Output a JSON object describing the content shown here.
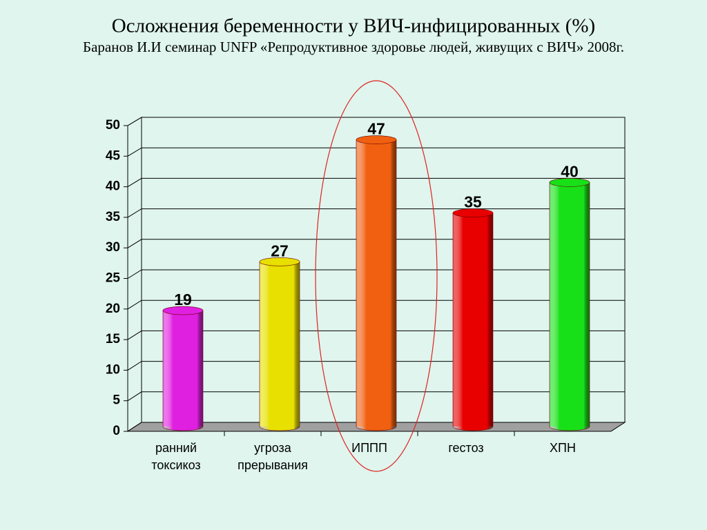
{
  "chart_data": {
    "type": "bar",
    "title": "Осложнения беременности у ВИЧ-инфицированных (%)",
    "subtitle": "Баранов И.И семинар UNFP «Репродуктивное здоровье людей, живущих с ВИЧ» 2008г.",
    "categories": [
      "ранний токсикоз",
      "угроза прерывания",
      "ИППП",
      "гестоз",
      "ХПН"
    ],
    "values": [
      19,
      27,
      47,
      35,
      40
    ],
    "colors": [
      "#e020e0",
      "#e8e000",
      "#f06010",
      "#e80000",
      "#18e018"
    ],
    "ylim": [
      0,
      50
    ],
    "yticks": [
      0,
      5,
      10,
      15,
      20,
      25,
      30,
      35,
      40,
      45,
      50
    ],
    "grid": true
  }
}
